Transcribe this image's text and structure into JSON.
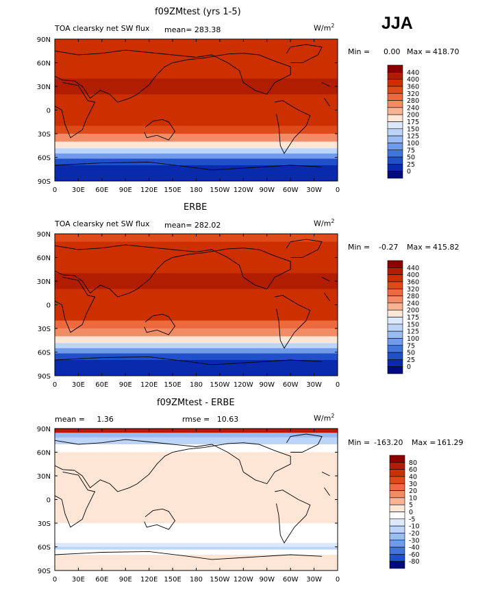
{
  "season_label": "JJA",
  "units": "W/m",
  "units_sup": "2",
  "panels": [
    {
      "title": "f09ZMtest (yrs 1-5)",
      "subtitle": "TOA clearsky net SW flux",
      "mean_text": "mean= 283.38",
      "rmse_text": "",
      "min_label": "Min =",
      "min_value": "0.00",
      "max_label": "Max =",
      "max_value": "418.70",
      "colorbar_labels": [
        "440",
        "400",
        "360",
        "320",
        "280",
        "240",
        "200",
        "175",
        "150",
        "125",
        "100",
        "75",
        "50",
        "25",
        "0"
      ],
      "colorbar_colors": [
        "#8b0000",
        "#b01d00",
        "#cc3000",
        "#df4a1a",
        "#ec6a3e",
        "#f28c66",
        "#f8b394",
        "#fde6d6",
        "#dce9fb",
        "#bcd4f8",
        "#98bcf3",
        "#6f9bea",
        "#4175dc",
        "#1f4fc9",
        "#0a2aad",
        "#000a80"
      ]
    },
    {
      "title": "ERBE",
      "subtitle": "TOA clearsky net SW flux",
      "mean_text": "mean= 282.02",
      "rmse_text": "",
      "min_label": "Min =",
      "min_value": "-0.27",
      "max_label": "Max =",
      "max_value": "415.82",
      "colorbar_labels": [
        "440",
        "400",
        "360",
        "320",
        "280",
        "240",
        "200",
        "175",
        "150",
        "125",
        "100",
        "75",
        "50",
        "25",
        "0"
      ],
      "colorbar_colors": [
        "#8b0000",
        "#b01d00",
        "#cc3000",
        "#df4a1a",
        "#ec6a3e",
        "#f28c66",
        "#f8b394",
        "#fde6d6",
        "#dce9fb",
        "#bcd4f8",
        "#98bcf3",
        "#6f9bea",
        "#4175dc",
        "#1f4fc9",
        "#0a2aad",
        "#000a80"
      ]
    },
    {
      "title": "f09ZMtest - ERBE",
      "subtitle": "",
      "mean_text": "mean =     1.36",
      "rmse_text": "rmse =   10.63",
      "min_label": "Min =",
      "min_value": "-163.20",
      "max_label": "Max =",
      "max_value": "161.29",
      "colorbar_labels": [
        "80",
        "60",
        "40",
        "30",
        "20",
        "10",
        "5",
        "0",
        "-5",
        "-10",
        "-20",
        "-30",
        "-40",
        "-60",
        "-80"
      ],
      "colorbar_colors": [
        "#8b0000",
        "#b01d00",
        "#cc3000",
        "#df4a1a",
        "#ec6a3e",
        "#f28c66",
        "#f8b394",
        "#fde6d6",
        "#ffffff",
        "#dce9fb",
        "#bcd4f8",
        "#98bcf3",
        "#6f9bea",
        "#4175dc",
        "#1f4fc9",
        "#000a80"
      ]
    }
  ],
  "chart_data": [
    {
      "type": "heatmap",
      "title": "f09ZMtest (yrs 1-5)",
      "subtitle": "TOA clearsky net SW flux",
      "units": "W/m2",
      "mean": 283.38,
      "min": 0.0,
      "max": 418.7,
      "x_ticks": [
        "0",
        "30E",
        "60E",
        "90E",
        "120E",
        "150E",
        "180",
        "150W",
        "120W",
        "90W",
        "60W",
        "30W",
        "0"
      ],
      "y_ticks": [
        "90N",
        "60N",
        "30N",
        "0",
        "30S",
        "60S",
        "90S"
      ],
      "xlim": [
        0,
        360
      ],
      "ylim": [
        -90,
        90
      ],
      "colorbar_levels": [
        440,
        400,
        360,
        320,
        280,
        240,
        200,
        175,
        150,
        125,
        100,
        75,
        50,
        25,
        0
      ],
      "zonal_profile": {
        "lat": [
          85,
          75,
          65,
          55,
          45,
          35,
          25,
          15,
          5,
          -5,
          -15,
          -25,
          -35,
          -45,
          -52,
          -58,
          -65,
          -75,
          -85
        ],
        "value": [
          365,
          370,
          372,
          380,
          392,
          405,
          410,
          395,
          380,
          375,
          362,
          320,
          255,
          185,
          130,
          80,
          35,
          8,
          0
        ]
      }
    },
    {
      "type": "heatmap",
      "title": "ERBE",
      "subtitle": "TOA clearsky net SW flux",
      "units": "W/m2",
      "mean": 282.02,
      "min": -0.27,
      "max": 415.82,
      "x_ticks": [
        "0",
        "30E",
        "60E",
        "90E",
        "120E",
        "150E",
        "180",
        "150W",
        "120W",
        "90W",
        "60W",
        "30W",
        "0"
      ],
      "y_ticks": [
        "90N",
        "60N",
        "30N",
        "0",
        "30S",
        "60S",
        "90S"
      ],
      "xlim": [
        0,
        360
      ],
      "ylim": [
        -90,
        90
      ],
      "colorbar_levels": [
        440,
        400,
        360,
        320,
        280,
        240,
        200,
        175,
        150,
        125,
        100,
        75,
        50,
        25,
        0
      ],
      "zonal_profile": {
        "lat": [
          85,
          75,
          65,
          55,
          45,
          35,
          25,
          15,
          5,
          -5,
          -15,
          -25,
          -35,
          -45,
          -52,
          -58,
          -65,
          -75,
          -85
        ],
        "value": [
          340,
          368,
          372,
          382,
          392,
          402,
          405,
          392,
          380,
          372,
          360,
          318,
          250,
          180,
          128,
          78,
          30,
          6,
          0
        ]
      }
    },
    {
      "type": "heatmap",
      "title": "f09ZMtest - ERBE",
      "units": "W/m2",
      "mean": 1.36,
      "rmse": 10.63,
      "min": -163.2,
      "max": 161.29,
      "x_ticks": [
        "0",
        "30E",
        "60E",
        "90E",
        "120E",
        "150E",
        "180",
        "150W",
        "120W",
        "90W",
        "60W",
        "30W",
        "0"
      ],
      "y_ticks": [
        "90N",
        "60N",
        "30N",
        "0",
        "30S",
        "60S",
        "90S"
      ],
      "xlim": [
        0,
        360
      ],
      "ylim": [
        -90,
        90
      ],
      "colorbar_levels": [
        80,
        60,
        40,
        30,
        20,
        10,
        5,
        0,
        -5,
        -10,
        -20,
        -30,
        -40,
        -60,
        -80
      ],
      "zonal_profile": {
        "lat": [
          87,
          82,
          75,
          65,
          55,
          45,
          35,
          25,
          15,
          5,
          -5,
          -15,
          -25,
          -35,
          -45,
          -52,
          -58,
          -62,
          -65,
          -75,
          -85
        ],
        "value": [
          75,
          -25,
          -12,
          -4,
          2,
          3,
          2,
          3,
          3,
          2,
          2,
          3,
          2,
          -2,
          -3,
          -2,
          -8,
          -15,
          -3,
          0,
          0
        ]
      }
    }
  ]
}
